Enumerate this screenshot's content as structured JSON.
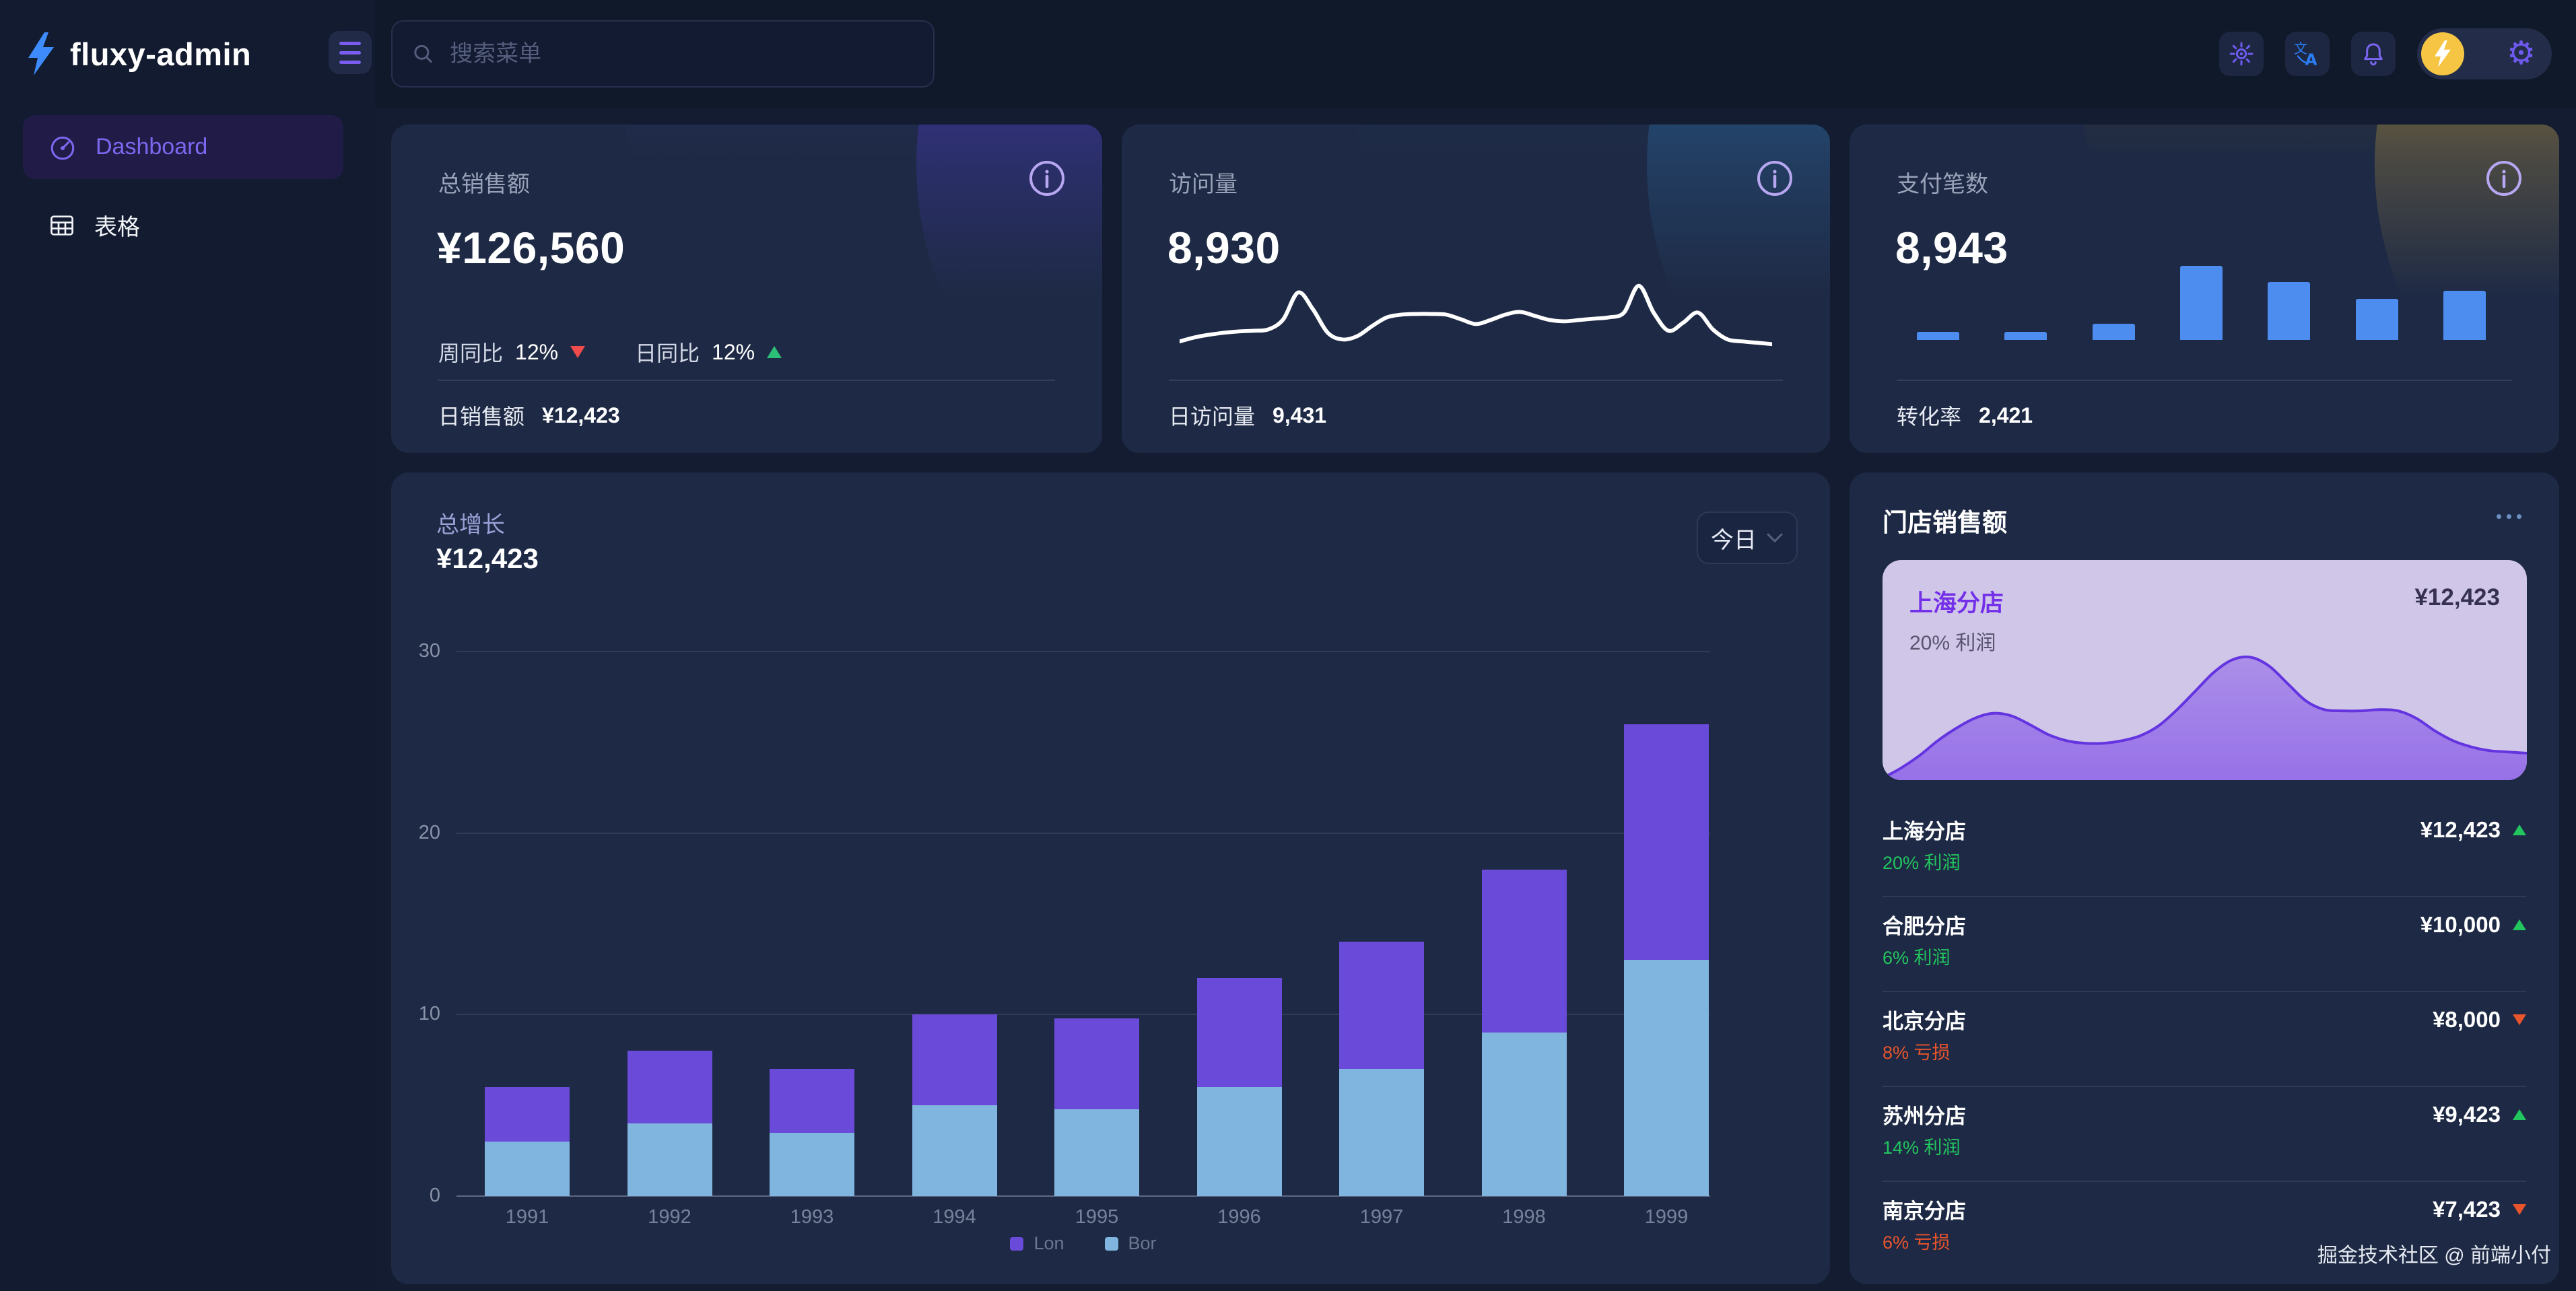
{
  "app": {
    "name": "fluxy-admin"
  },
  "topbar": {
    "search_placeholder": "搜索菜单",
    "icons": [
      "theme-sun",
      "translate",
      "notification-bell",
      "avatar-lightning",
      "settings-gear"
    ]
  },
  "sidebar": {
    "items": [
      {
        "label": "Dashboard",
        "icon": "gauge",
        "active": true
      },
      {
        "label": "表格",
        "icon": "table",
        "active": false
      }
    ]
  },
  "stat_cards": [
    {
      "label": "总销售额",
      "value": "¥126,560",
      "metrics": [
        {
          "label": "周同比",
          "value": "12%",
          "direction": "down"
        },
        {
          "label": "日同比",
          "value": "12%",
          "direction": "up"
        }
      ],
      "footer_label": "日销售额",
      "footer_value": "¥12,423",
      "decor_colors": [
        "#34297e",
        "#4a3bc2"
      ]
    },
    {
      "label": "访问量",
      "value": "8,930",
      "footer_label": "日访问量",
      "footer_value": "9,431",
      "decor_colors": [
        "#16395c",
        "#2d6ba3"
      ]
    },
    {
      "label": "支付笔数",
      "value": "8,943",
      "footer_label": "转化率",
      "footer_value": "2,421",
      "decor_colors": [
        "#55471f",
        "#b2913d"
      ]
    }
  ],
  "growth_card": {
    "title": "总增长",
    "value": "¥12,423",
    "range_selector": "今日"
  },
  "store_card": {
    "title": "门店销售额",
    "highlight": {
      "name": "上海分店",
      "value": "¥12,423",
      "note": "20% 利润"
    },
    "rows": [
      {
        "name": "上海分店",
        "value": "¥12,423",
        "direction": "up",
        "note": "20% 利润",
        "note_type": "profit"
      },
      {
        "name": "合肥分店",
        "value": "¥10,000",
        "direction": "up",
        "note": "6% 利润",
        "note_type": "profit"
      },
      {
        "name": "北京分店",
        "value": "¥8,000",
        "direction": "down",
        "note": "8% 亏损",
        "note_type": "loss"
      },
      {
        "name": "苏州分店",
        "value": "¥9,423",
        "direction": "up",
        "note": "14% 利润",
        "note_type": "profit"
      },
      {
        "name": "南京分店",
        "value": "¥7,423",
        "direction": "down",
        "note": "6% 亏损",
        "note_type": "loss"
      }
    ]
  },
  "footer": {
    "credit": "掘金技术社区 @ 前端小付"
  },
  "colors": {
    "accent_purple": "#6a4ad9",
    "bar_blue": "#7fb5de",
    "mini_bar_blue": "#4e8df0",
    "up_green": "#22c55e",
    "down_red": "#f04c4c",
    "loss_orange": "#e8542c",
    "card_bg": "#1e2a45",
    "sidebar_bg": "#121b2f",
    "page_bg": "#131c30",
    "highlight_bg": "#cfc6e8",
    "area_line": "#6434e0"
  },
  "chart_data": [
    {
      "type": "bar",
      "stacked": true,
      "title": "总增长",
      "categories": [
        "1991",
        "1992",
        "1993",
        "1994",
        "1995",
        "1996",
        "1997",
        "1998",
        "1999"
      ],
      "series": [
        {
          "name": "Lon",
          "color": "#6a4ad9",
          "values": [
            3,
            4,
            3.5,
            5,
            5,
            6,
            7,
            9,
            13
          ]
        },
        {
          "name": "Bor",
          "color": "#7fb5de",
          "values": [
            3,
            4,
            3.5,
            5,
            4.8,
            6,
            7,
            9,
            13
          ]
        }
      ],
      "ylim": [
        0,
        30
      ],
      "yticks": [
        0,
        10,
        20,
        30
      ],
      "xlabel": "",
      "ylabel": "",
      "grid": true,
      "legend_position": "bottom"
    },
    {
      "type": "line",
      "title": "访问量趋势",
      "color": "#ffffff",
      "values": [
        12,
        18,
        22,
        25,
        27,
        28,
        30,
        45,
        85,
        60,
        25,
        15,
        20,
        35,
        48,
        52,
        53,
        53,
        52,
        45,
        38,
        44,
        52,
        56,
        50,
        44,
        42,
        44,
        46,
        48,
        55,
        95,
        55,
        28,
        40,
        55,
        30,
        15,
        12,
        10,
        8
      ]
    },
    {
      "type": "bar",
      "title": "支付笔数分布",
      "color": "#4e8df0",
      "values": [
        1,
        1,
        2,
        9,
        7,
        5,
        6
      ]
    },
    {
      "type": "area",
      "title": "上海分店趋势",
      "color": "#6434e0",
      "values": [
        0,
        8,
        18,
        30,
        40,
        48,
        52,
        50,
        43,
        35,
        30,
        28,
        28,
        30,
        34,
        42,
        55,
        70,
        85,
        95,
        97,
        90,
        76,
        62,
        55,
        54,
        54,
        55,
        54,
        48,
        38,
        30,
        25,
        22,
        21,
        20
      ]
    }
  ]
}
